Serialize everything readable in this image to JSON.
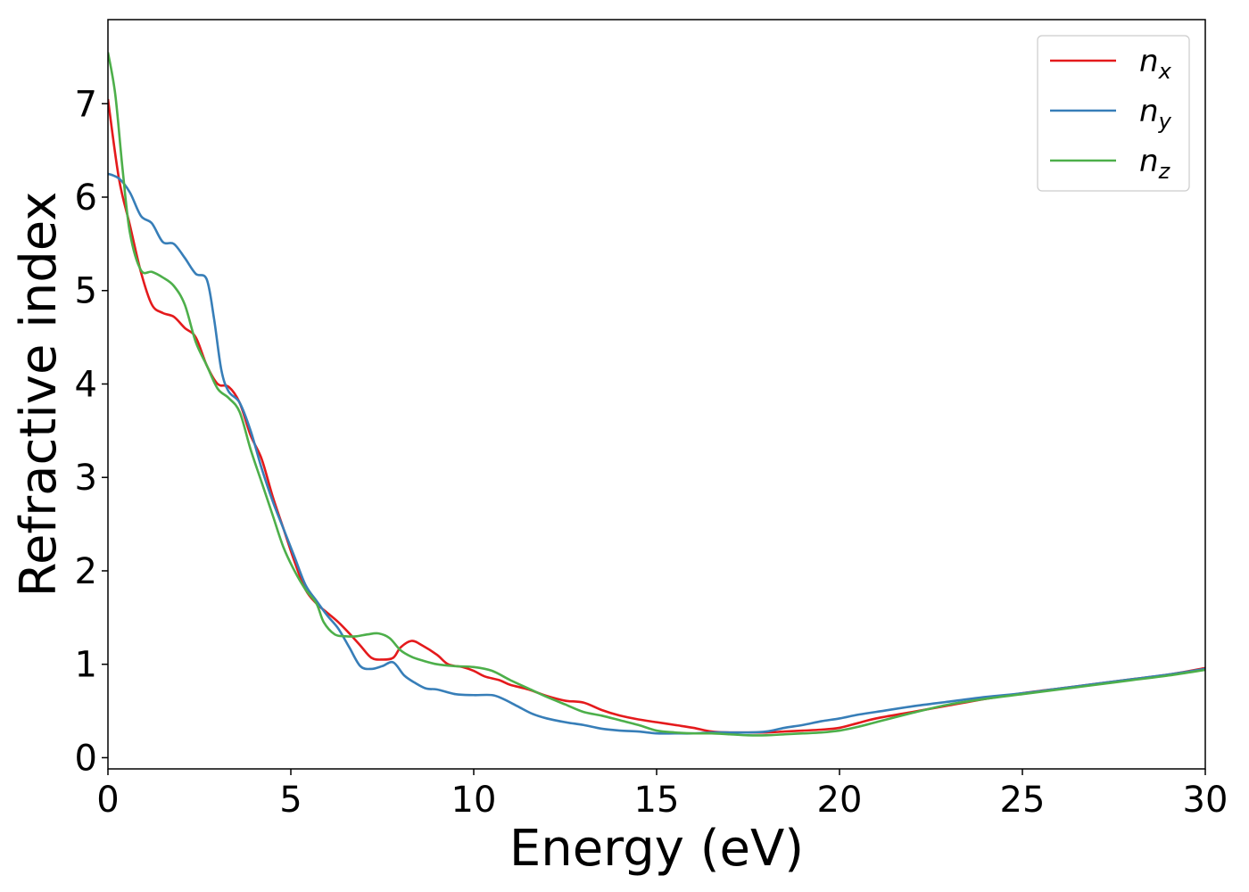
{
  "chart_data": {
    "type": "line",
    "xlabel": "Energy (eV)",
    "ylabel": "Refractive index",
    "xlim": [
      0,
      30
    ],
    "ylim": [
      -0.12,
      7.9
    ],
    "x_ticks": [
      0,
      5,
      10,
      15,
      20,
      25,
      30
    ],
    "y_ticks": [
      0,
      1,
      2,
      3,
      4,
      5,
      6,
      7
    ],
    "grid": false,
    "legend_position": "top-right",
    "series": [
      {
        "name": "n_x",
        "label_base": "n",
        "label_sub": "x",
        "color": "#e41a1c",
        "points": [
          [
            0,
            7.05
          ],
          [
            0.3,
            6.2
          ],
          [
            0.6,
            5.7
          ],
          [
            0.9,
            5.2
          ],
          [
            1.2,
            4.85
          ],
          [
            1.5,
            4.76
          ],
          [
            1.8,
            4.72
          ],
          [
            2.1,
            4.6
          ],
          [
            2.4,
            4.5
          ],
          [
            2.7,
            4.2
          ],
          [
            3.0,
            4.0
          ],
          [
            3.3,
            3.97
          ],
          [
            3.6,
            3.8
          ],
          [
            3.9,
            3.45
          ],
          [
            4.2,
            3.2
          ],
          [
            4.5,
            2.8
          ],
          [
            4.8,
            2.45
          ],
          [
            5.1,
            2.1
          ],
          [
            5.4,
            1.8
          ],
          [
            5.7,
            1.65
          ],
          [
            6.0,
            1.55
          ],
          [
            6.3,
            1.45
          ],
          [
            6.6,
            1.33
          ],
          [
            6.9,
            1.2
          ],
          [
            7.2,
            1.07
          ],
          [
            7.5,
            1.05
          ],
          [
            7.8,
            1.07
          ],
          [
            8.0,
            1.18
          ],
          [
            8.3,
            1.25
          ],
          [
            8.6,
            1.2
          ],
          [
            9.0,
            1.1
          ],
          [
            9.3,
            1.0
          ],
          [
            9.7,
            0.97
          ],
          [
            10.0,
            0.93
          ],
          [
            10.3,
            0.87
          ],
          [
            10.7,
            0.83
          ],
          [
            11.0,
            0.78
          ],
          [
            11.5,
            0.73
          ],
          [
            12.0,
            0.66
          ],
          [
            12.5,
            0.61
          ],
          [
            13.0,
            0.59
          ],
          [
            13.5,
            0.51
          ],
          [
            14.0,
            0.45
          ],
          [
            14.5,
            0.41
          ],
          [
            15.0,
            0.38
          ],
          [
            15.5,
            0.35
          ],
          [
            16.0,
            0.32
          ],
          [
            16.5,
            0.28
          ],
          [
            17.0,
            0.27
          ],
          [
            17.5,
            0.27
          ],
          [
            18.0,
            0.27
          ],
          [
            18.5,
            0.28
          ],
          [
            19.0,
            0.29
          ],
          [
            19.5,
            0.3
          ],
          [
            20.0,
            0.32
          ],
          [
            20.5,
            0.37
          ],
          [
            21.0,
            0.42
          ],
          [
            22.0,
            0.49
          ],
          [
            23.0,
            0.56
          ],
          [
            24.0,
            0.63
          ],
          [
            25.0,
            0.69
          ],
          [
            26.0,
            0.74
          ],
          [
            27.0,
            0.79
          ],
          [
            28.0,
            0.84
          ],
          [
            29.0,
            0.89
          ],
          [
            30.0,
            0.96
          ]
        ]
      },
      {
        "name": "n_y",
        "label_base": "n",
        "label_sub": "y",
        "color": "#377eb8",
        "points": [
          [
            0,
            6.25
          ],
          [
            0.3,
            6.2
          ],
          [
            0.6,
            6.05
          ],
          [
            0.9,
            5.8
          ],
          [
            1.2,
            5.72
          ],
          [
            1.5,
            5.52
          ],
          [
            1.8,
            5.5
          ],
          [
            2.1,
            5.35
          ],
          [
            2.4,
            5.18
          ],
          [
            2.7,
            5.12
          ],
          [
            2.9,
            4.7
          ],
          [
            3.1,
            4.15
          ],
          [
            3.3,
            3.92
          ],
          [
            3.6,
            3.8
          ],
          [
            3.9,
            3.5
          ],
          [
            4.2,
            3.1
          ],
          [
            4.5,
            2.75
          ],
          [
            4.8,
            2.45
          ],
          [
            5.1,
            2.15
          ],
          [
            5.4,
            1.85
          ],
          [
            5.7,
            1.68
          ],
          [
            6.0,
            1.52
          ],
          [
            6.3,
            1.38
          ],
          [
            6.6,
            1.18
          ],
          [
            6.9,
            0.98
          ],
          [
            7.2,
            0.95
          ],
          [
            7.5,
            0.98
          ],
          [
            7.8,
            1.02
          ],
          [
            8.1,
            0.88
          ],
          [
            8.4,
            0.8
          ],
          [
            8.7,
            0.74
          ],
          [
            9.0,
            0.73
          ],
          [
            9.5,
            0.68
          ],
          [
            10.0,
            0.67
          ],
          [
            10.5,
            0.67
          ],
          [
            10.8,
            0.63
          ],
          [
            11.2,
            0.55
          ],
          [
            11.6,
            0.47
          ],
          [
            12.0,
            0.42
          ],
          [
            12.5,
            0.38
          ],
          [
            13.0,
            0.35
          ],
          [
            13.5,
            0.31
          ],
          [
            14.0,
            0.29
          ],
          [
            14.5,
            0.28
          ],
          [
            15.0,
            0.26
          ],
          [
            15.5,
            0.26
          ],
          [
            16.0,
            0.26
          ],
          [
            16.5,
            0.27
          ],
          [
            17.0,
            0.27
          ],
          [
            17.5,
            0.27
          ],
          [
            18.0,
            0.28
          ],
          [
            18.5,
            0.32
          ],
          [
            19.0,
            0.35
          ],
          [
            19.5,
            0.39
          ],
          [
            20.0,
            0.42
          ],
          [
            20.5,
            0.46
          ],
          [
            21.0,
            0.49
          ],
          [
            22.0,
            0.55
          ],
          [
            23.0,
            0.6
          ],
          [
            24.0,
            0.65
          ],
          [
            25.0,
            0.69
          ],
          [
            26.0,
            0.74
          ],
          [
            27.0,
            0.79
          ],
          [
            28.0,
            0.84
          ],
          [
            29.0,
            0.89
          ],
          [
            30.0,
            0.95
          ]
        ]
      },
      {
        "name": "n_z",
        "label_base": "n",
        "label_sub": "z",
        "color": "#4daf4a",
        "points": [
          [
            0,
            7.55
          ],
          [
            0.2,
            7.1
          ],
          [
            0.4,
            6.3
          ],
          [
            0.6,
            5.62
          ],
          [
            0.9,
            5.22
          ],
          [
            1.2,
            5.2
          ],
          [
            1.5,
            5.14
          ],
          [
            1.8,
            5.05
          ],
          [
            2.1,
            4.85
          ],
          [
            2.4,
            4.45
          ],
          [
            2.7,
            4.2
          ],
          [
            3.0,
            3.95
          ],
          [
            3.3,
            3.85
          ],
          [
            3.6,
            3.7
          ],
          [
            3.9,
            3.3
          ],
          [
            4.2,
            2.95
          ],
          [
            4.5,
            2.6
          ],
          [
            4.8,
            2.25
          ],
          [
            5.1,
            2.0
          ],
          [
            5.4,
            1.8
          ],
          [
            5.7,
            1.65
          ],
          [
            5.9,
            1.45
          ],
          [
            6.2,
            1.32
          ],
          [
            6.5,
            1.3
          ],
          [
            6.8,
            1.3
          ],
          [
            7.1,
            1.32
          ],
          [
            7.4,
            1.33
          ],
          [
            7.7,
            1.28
          ],
          [
            8.0,
            1.15
          ],
          [
            8.3,
            1.08
          ],
          [
            8.6,
            1.04
          ],
          [
            9.0,
            1.0
          ],
          [
            9.5,
            0.98
          ],
          [
            10.0,
            0.97
          ],
          [
            10.5,
            0.93
          ],
          [
            11.0,
            0.83
          ],
          [
            11.5,
            0.74
          ],
          [
            12.0,
            0.65
          ],
          [
            12.5,
            0.57
          ],
          [
            13.0,
            0.49
          ],
          [
            13.5,
            0.45
          ],
          [
            14.0,
            0.4
          ],
          [
            14.5,
            0.35
          ],
          [
            15.0,
            0.29
          ],
          [
            15.5,
            0.27
          ],
          [
            16.0,
            0.26
          ],
          [
            16.5,
            0.26
          ],
          [
            17.0,
            0.25
          ],
          [
            17.5,
            0.24
          ],
          [
            18.0,
            0.24
          ],
          [
            18.5,
            0.25
          ],
          [
            19.0,
            0.26
          ],
          [
            19.5,
            0.27
          ],
          [
            20.0,
            0.29
          ],
          [
            20.5,
            0.33
          ],
          [
            21.0,
            0.38
          ],
          [
            22.0,
            0.48
          ],
          [
            23.0,
            0.57
          ],
          [
            24.0,
            0.63
          ],
          [
            25.0,
            0.68
          ],
          [
            26.0,
            0.73
          ],
          [
            27.0,
            0.78
          ],
          [
            28.0,
            0.83
          ],
          [
            29.0,
            0.88
          ],
          [
            30.0,
            0.94
          ]
        ]
      }
    ]
  }
}
